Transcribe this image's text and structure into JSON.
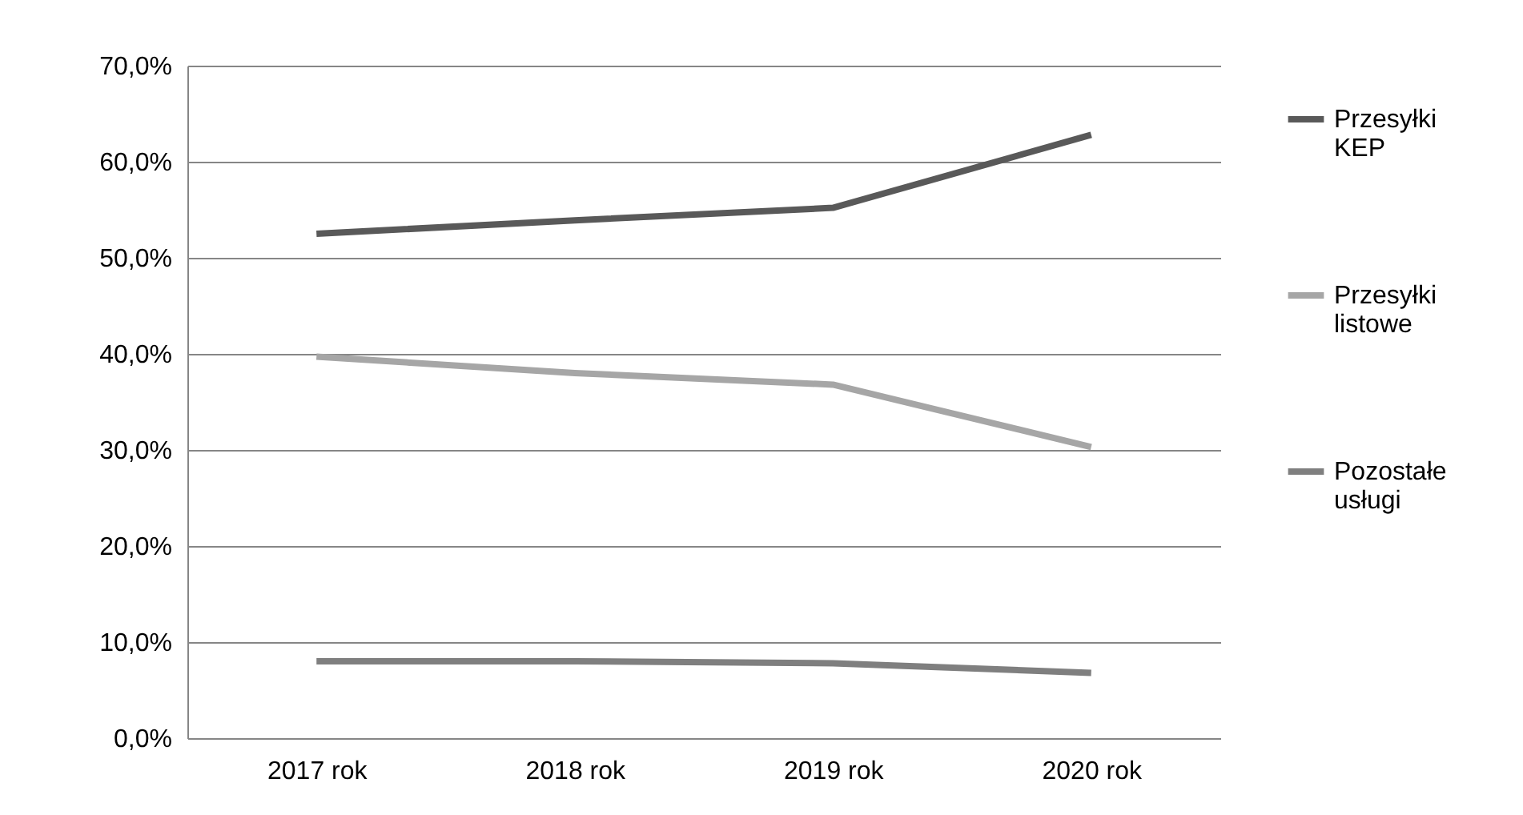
{
  "chart_data": {
    "type": "line",
    "categories": [
      "2017 rok",
      "2018 rok",
      "2019 rok",
      "2020 rok"
    ],
    "series": [
      {
        "name": "Przesyłki KEP",
        "color": "#595959",
        "values": [
          52.5,
          53.9,
          55.2,
          62.8
        ]
      },
      {
        "name": "Przesyłki listowe",
        "color": "#a6a6a6",
        "values": [
          39.7,
          38.0,
          36.8,
          30.3
        ]
      },
      {
        "name": "Pozostałe usługi",
        "color": "#7f7f7f",
        "values": [
          8.0,
          8.0,
          7.8,
          6.8
        ]
      }
    ],
    "ylim": [
      0,
      70
    ],
    "yticks": [
      {
        "value": 0,
        "label": "0,0%"
      },
      {
        "value": 10,
        "label": "10,0%"
      },
      {
        "value": 20,
        "label": "20,0%"
      },
      {
        "value": 30,
        "label": "30,0%"
      },
      {
        "value": 40,
        "label": "40,0%"
      },
      {
        "value": 50,
        "label": "50,0%"
      },
      {
        "value": 60,
        "label": "60,0%"
      },
      {
        "value": 70,
        "label": "70,0%"
      }
    ],
    "grid": "y",
    "legend": "right",
    "marker": "none",
    "line_style": "solid"
  }
}
